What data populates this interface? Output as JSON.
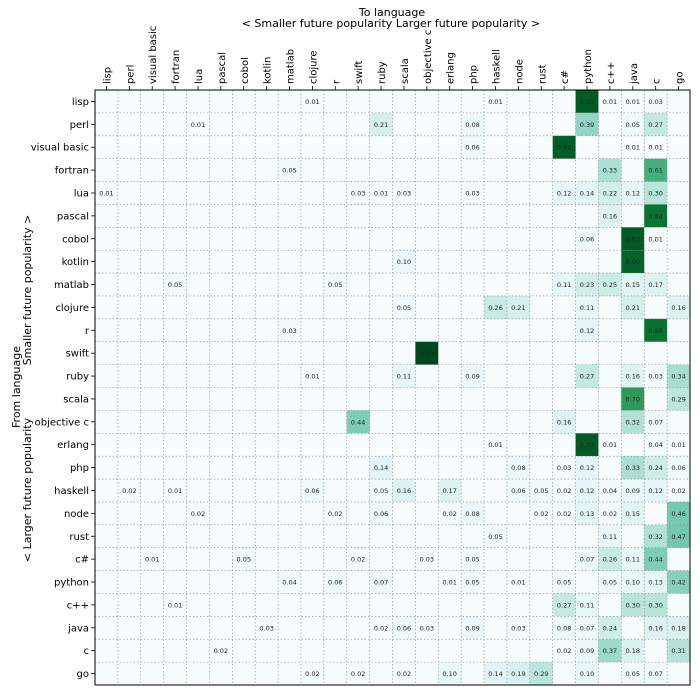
{
  "chart_data": {
    "type": "heatmap",
    "x_axis_label": "To language",
    "x_direction_left": "< Smaller future popularity",
    "x_direction_right": "Larger future popularity >",
    "y_axis_label": "From language",
    "y_direction_top": "Smaller future popularity >",
    "y_direction_bottom": "< Larger future popularity",
    "grid": true,
    "colormap": [
      "#f7fcfd",
      "#e5f5f9",
      "#ccece6",
      "#99d8c9",
      "#66c2a4",
      "#41ae76",
      "#238b45",
      "#006d2c",
      "#00441b"
    ],
    "columns": [
      "lisp",
      "perl",
      "visual basic",
      "fortran",
      "lua",
      "pascal",
      "cobol",
      "kotlin",
      "matlab",
      "clojure",
      "r",
      "swift",
      "ruby",
      "scala",
      "objective c",
      "erlang",
      "php",
      "haskell",
      "node",
      "rust",
      "c#",
      "python",
      "c++",
      "java",
      "c",
      "go"
    ],
    "rows": [
      "lisp",
      "perl",
      "visual basic",
      "fortran",
      "lua",
      "pascal",
      "cobol",
      "kotlin",
      "matlab",
      "clojure",
      "r",
      "swift",
      "ruby",
      "scala",
      "objective c",
      "erlang",
      "php",
      "haskell",
      "node",
      "rust",
      "c#",
      "python",
      "c++",
      "java",
      "c",
      "go"
    ],
    "cells": [
      {
        "row": "lisp",
        "col": "clojure",
        "value": 0.01,
        "label": "0.01"
      },
      {
        "row": "lisp",
        "col": "haskell",
        "value": 0.01,
        "label": "0.01"
      },
      {
        "row": "lisp",
        "col": "python",
        "value": 0.93,
        "label": "0.93"
      },
      {
        "row": "lisp",
        "col": "c++",
        "value": 0.01,
        "label": "0.01"
      },
      {
        "row": "lisp",
        "col": "java",
        "value": 0.01,
        "label": "0.01"
      },
      {
        "row": "lisp",
        "col": "c",
        "value": 0.03,
        "label": "0.03"
      },
      {
        "row": "perl",
        "col": "lua",
        "value": 0.01,
        "label": "0.01"
      },
      {
        "row": "perl",
        "col": "ruby",
        "value": 0.21,
        "label": "0.21"
      },
      {
        "row": "perl",
        "col": "php",
        "value": 0.08,
        "label": "0.08"
      },
      {
        "row": "perl",
        "col": "python",
        "value": 0.39,
        "label": "0.39"
      },
      {
        "row": "perl",
        "col": "java",
        "value": 0.05,
        "label": "0.05"
      },
      {
        "row": "perl",
        "col": "c",
        "value": 0.27,
        "label": "0.27"
      },
      {
        "row": "visual basic",
        "col": "php",
        "value": 0.06,
        "label": "0.06"
      },
      {
        "row": "visual basic",
        "col": "c#",
        "value": 0.92,
        "label": "0.92"
      },
      {
        "row": "visual basic",
        "col": "java",
        "value": 0.01,
        "label": "0.01"
      },
      {
        "row": "visual basic",
        "col": "c",
        "value": 0.01,
        "label": "0.01"
      },
      {
        "row": "fortran",
        "col": "matlab",
        "value": 0.05,
        "label": "0.05"
      },
      {
        "row": "fortran",
        "col": "c++",
        "value": 0.33,
        "label": "0.33"
      },
      {
        "row": "fortran",
        "col": "c",
        "value": 0.61,
        "label": "0.61"
      },
      {
        "row": "lua",
        "col": "lisp",
        "value": 0.01,
        "label": "0.01"
      },
      {
        "row": "lua",
        "col": "swift",
        "value": 0.03,
        "label": "0.03"
      },
      {
        "row": "lua",
        "col": "ruby",
        "value": 0.01,
        "label": "0.01"
      },
      {
        "row": "lua",
        "col": "scala",
        "value": 0.03,
        "label": "0.03"
      },
      {
        "row": "lua",
        "col": "php",
        "value": 0.03,
        "label": "0.03"
      },
      {
        "row": "lua",
        "col": "c#",
        "value": 0.12,
        "label": "0.12"
      },
      {
        "row": "lua",
        "col": "python",
        "value": 0.14,
        "label": "0.14"
      },
      {
        "row": "lua",
        "col": "c++",
        "value": 0.22,
        "label": "0.22"
      },
      {
        "row": "lua",
        "col": "java",
        "value": 0.12,
        "label": "0.12"
      },
      {
        "row": "lua",
        "col": "c",
        "value": 0.3,
        "label": "0.30"
      },
      {
        "row": "pascal",
        "col": "c++",
        "value": 0.16,
        "label": "0.16"
      },
      {
        "row": "pascal",
        "col": "c",
        "value": 0.84,
        "label": "0.84"
      },
      {
        "row": "cobol",
        "col": "python",
        "value": 0.06,
        "label": "0.06"
      },
      {
        "row": "cobol",
        "col": "java",
        "value": 0.93,
        "label": "0.93"
      },
      {
        "row": "cobol",
        "col": "c",
        "value": 0.01,
        "label": "0.01"
      },
      {
        "row": "kotlin",
        "col": "scala",
        "value": 0.1,
        "label": "0.10"
      },
      {
        "row": "kotlin",
        "col": "java",
        "value": 0.9,
        "label": "0.90"
      },
      {
        "row": "matlab",
        "col": "fortran",
        "value": 0.05,
        "label": "0.05"
      },
      {
        "row": "matlab",
        "col": "r",
        "value": 0.05,
        "label": "0.05"
      },
      {
        "row": "matlab",
        "col": "c#",
        "value": 0.11,
        "label": "0.11"
      },
      {
        "row": "matlab",
        "col": "python",
        "value": 0.23,
        "label": "0.23"
      },
      {
        "row": "matlab",
        "col": "c++",
        "value": 0.25,
        "label": "0.25"
      },
      {
        "row": "matlab",
        "col": "java",
        "value": 0.15,
        "label": "0.15"
      },
      {
        "row": "matlab",
        "col": "c",
        "value": 0.17,
        "label": "0.17"
      },
      {
        "row": "clojure",
        "col": "scala",
        "value": 0.05,
        "label": "0.05"
      },
      {
        "row": "clojure",
        "col": "haskell",
        "value": 0.26,
        "label": "0.26"
      },
      {
        "row": "clojure",
        "col": "node",
        "value": 0.21,
        "label": "0.21"
      },
      {
        "row": "clojure",
        "col": "python",
        "value": 0.11,
        "label": "0.11"
      },
      {
        "row": "clojure",
        "col": "java",
        "value": 0.21,
        "label": "0.21"
      },
      {
        "row": "clojure",
        "col": "go",
        "value": 0.16,
        "label": "0.16"
      },
      {
        "row": "r",
        "col": "matlab",
        "value": 0.03,
        "label": "0.03"
      },
      {
        "row": "r",
        "col": "python",
        "value": 0.12,
        "label": "0.12"
      },
      {
        "row": "r",
        "col": "c",
        "value": 0.85,
        "label": "0.85"
      },
      {
        "row": "swift",
        "col": "objective c",
        "value": 0.99,
        "label": "0.99"
      },
      {
        "row": "ruby",
        "col": "clojure",
        "value": 0.01,
        "label": "0.01"
      },
      {
        "row": "ruby",
        "col": "scala",
        "value": 0.11,
        "label": "0.11"
      },
      {
        "row": "ruby",
        "col": "php",
        "value": 0.09,
        "label": "0.09"
      },
      {
        "row": "ruby",
        "col": "python",
        "value": 0.27,
        "label": "0.27"
      },
      {
        "row": "ruby",
        "col": "java",
        "value": 0.16,
        "label": "0.16"
      },
      {
        "row": "ruby",
        "col": "c",
        "value": 0.03,
        "label": "0.03"
      },
      {
        "row": "ruby",
        "col": "go",
        "value": 0.34,
        "label": "0.34"
      },
      {
        "row": "scala",
        "col": "java",
        "value": 0.7,
        "label": "0.70"
      },
      {
        "row": "scala",
        "col": "go",
        "value": 0.29,
        "label": "0.29"
      },
      {
        "row": "objective c",
        "col": "swift",
        "value": 0.44,
        "label": "0.44"
      },
      {
        "row": "objective c",
        "col": "c#",
        "value": 0.16,
        "label": "0.16"
      },
      {
        "row": "objective c",
        "col": "java",
        "value": 0.32,
        "label": "0.32"
      },
      {
        "row": "objective c",
        "col": "c",
        "value": 0.07,
        "label": "0.07"
      },
      {
        "row": "erlang",
        "col": "haskell",
        "value": 0.01,
        "label": "0.01"
      },
      {
        "row": "erlang",
        "col": "python",
        "value": 0.93,
        "label": "0.93"
      },
      {
        "row": "erlang",
        "col": "c++",
        "value": 0.01,
        "label": "0.01"
      },
      {
        "row": "erlang",
        "col": "c",
        "value": 0.04,
        "label": "0.04"
      },
      {
        "row": "erlang",
        "col": "go",
        "value": 0.01,
        "label": "0.01"
      },
      {
        "row": "php",
        "col": "ruby",
        "value": 0.14,
        "label": "0.14"
      },
      {
        "row": "php",
        "col": "node",
        "value": 0.08,
        "label": "0.08"
      },
      {
        "row": "php",
        "col": "c#",
        "value": 0.03,
        "label": "0.03"
      },
      {
        "row": "php",
        "col": "python",
        "value": 0.12,
        "label": "0.12"
      },
      {
        "row": "php",
        "col": "java",
        "value": 0.33,
        "label": "0.33"
      },
      {
        "row": "php",
        "col": "c",
        "value": 0.24,
        "label": "0.24"
      },
      {
        "row": "php",
        "col": "go",
        "value": 0.06,
        "label": "0.06"
      },
      {
        "row": "haskell",
        "col": "perl",
        "value": 0.02,
        "label": "0.02"
      },
      {
        "row": "haskell",
        "col": "fortran",
        "value": 0.01,
        "label": "0.01"
      },
      {
        "row": "haskell",
        "col": "clojure",
        "value": 0.06,
        "label": "0.06"
      },
      {
        "row": "haskell",
        "col": "ruby",
        "value": 0.05,
        "label": "0.05"
      },
      {
        "row": "haskell",
        "col": "scala",
        "value": 0.16,
        "label": "0.16"
      },
      {
        "row": "haskell",
        "col": "erlang",
        "value": 0.17,
        "label": "0.17"
      },
      {
        "row": "haskell",
        "col": "node",
        "value": 0.06,
        "label": "0.06"
      },
      {
        "row": "haskell",
        "col": "rust",
        "value": 0.05,
        "label": "0.05"
      },
      {
        "row": "haskell",
        "col": "c#",
        "value": 0.02,
        "label": "0.02"
      },
      {
        "row": "haskell",
        "col": "python",
        "value": 0.12,
        "label": "0.12"
      },
      {
        "row": "haskell",
        "col": "c++",
        "value": 0.04,
        "label": "0.04"
      },
      {
        "row": "haskell",
        "col": "java",
        "value": 0.09,
        "label": "0.09"
      },
      {
        "row": "haskell",
        "col": "c",
        "value": 0.12,
        "label": "0.12"
      },
      {
        "row": "haskell",
        "col": "go",
        "value": 0.02,
        "label": "0.02"
      },
      {
        "row": "node",
        "col": "lua",
        "value": 0.02,
        "label": "0.02"
      },
      {
        "row": "node",
        "col": "r",
        "value": 0.02,
        "label": "0.02"
      },
      {
        "row": "node",
        "col": "ruby",
        "value": 0.06,
        "label": "0.06"
      },
      {
        "row": "node",
        "col": "erlang",
        "value": 0.02,
        "label": "0.02"
      },
      {
        "row": "node",
        "col": "php",
        "value": 0.08,
        "label": "0.08"
      },
      {
        "row": "node",
        "col": "rust",
        "value": 0.02,
        "label": "0.02"
      },
      {
        "row": "node",
        "col": "c#",
        "value": 0.02,
        "label": "0.02"
      },
      {
        "row": "node",
        "col": "python",
        "value": 0.13,
        "label": "0.13"
      },
      {
        "row": "node",
        "col": "c++",
        "value": 0.02,
        "label": "0.02"
      },
      {
        "row": "node",
        "col": "java",
        "value": 0.15,
        "label": "0.15"
      },
      {
        "row": "node",
        "col": "go",
        "value": 0.46,
        "label": "0.46"
      },
      {
        "row": "rust",
        "col": "haskell",
        "value": 0.05,
        "label": "0.05"
      },
      {
        "row": "rust",
        "col": "c++",
        "value": 0.11,
        "label": "0.11"
      },
      {
        "row": "rust",
        "col": "c",
        "value": 0.32,
        "label": "0.32"
      },
      {
        "row": "rust",
        "col": "go",
        "value": 0.47,
        "label": "0.47"
      },
      {
        "row": "c#",
        "col": "visual basic",
        "value": 0.01,
        "label": "0.01"
      },
      {
        "row": "c#",
        "col": "cobol",
        "value": 0.05,
        "label": "0.05"
      },
      {
        "row": "c#",
        "col": "swift",
        "value": 0.02,
        "label": "0.02"
      },
      {
        "row": "c#",
        "col": "objective c",
        "value": 0.03,
        "label": "0.03"
      },
      {
        "row": "c#",
        "col": "php",
        "value": 0.05,
        "label": "0.05"
      },
      {
        "row": "c#",
        "col": "python",
        "value": 0.07,
        "label": "0.07"
      },
      {
        "row": "c#",
        "col": "c++",
        "value": 0.26,
        "label": "0.26"
      },
      {
        "row": "c#",
        "col": "java",
        "value": 0.11,
        "label": "0.11"
      },
      {
        "row": "c#",
        "col": "c",
        "value": 0.44,
        "label": "0.44"
      },
      {
        "row": "python",
        "col": "matlab",
        "value": 0.04,
        "label": "0.04"
      },
      {
        "row": "python",
        "col": "r",
        "value": 0.06,
        "label": "0.06"
      },
      {
        "row": "python",
        "col": "ruby",
        "value": 0.07,
        "label": "0.07"
      },
      {
        "row": "python",
        "col": "erlang",
        "value": 0.01,
        "label": "0.01"
      },
      {
        "row": "python",
        "col": "php",
        "value": 0.05,
        "label": "0.05"
      },
      {
        "row": "python",
        "col": "node",
        "value": 0.01,
        "label": "0.01"
      },
      {
        "row": "python",
        "col": "c#",
        "value": 0.05,
        "label": "0.05"
      },
      {
        "row": "python",
        "col": "c++",
        "value": 0.05,
        "label": "0.05"
      },
      {
        "row": "python",
        "col": "java",
        "value": 0.1,
        "label": "0.10"
      },
      {
        "row": "python",
        "col": "c",
        "value": 0.13,
        "label": "0.13"
      },
      {
        "row": "python",
        "col": "go",
        "value": 0.42,
        "label": "0.42"
      },
      {
        "row": "c++",
        "col": "fortran",
        "value": 0.01,
        "label": "0.01"
      },
      {
        "row": "c++",
        "col": "c#",
        "value": 0.27,
        "label": "0.27"
      },
      {
        "row": "c++",
        "col": "python",
        "value": 0.11,
        "label": "0.11"
      },
      {
        "row": "c++",
        "col": "java",
        "value": 0.3,
        "label": "0.30"
      },
      {
        "row": "c++",
        "col": "c",
        "value": 0.3,
        "label": "0.30"
      },
      {
        "row": "java",
        "col": "kotlin",
        "value": 0.03,
        "label": "0.03"
      },
      {
        "row": "java",
        "col": "ruby",
        "value": 0.02,
        "label": "0.02"
      },
      {
        "row": "java",
        "col": "scala",
        "value": 0.06,
        "label": "0.06"
      },
      {
        "row": "java",
        "col": "objective c",
        "value": 0.03,
        "label": "0.03"
      },
      {
        "row": "java",
        "col": "php",
        "value": 0.09,
        "label": "0.09"
      },
      {
        "row": "java",
        "col": "node",
        "value": 0.03,
        "label": "0.03"
      },
      {
        "row": "java",
        "col": "c#",
        "value": 0.08,
        "label": "0.08"
      },
      {
        "row": "java",
        "col": "python",
        "value": 0.07,
        "label": "0.07"
      },
      {
        "row": "java",
        "col": "c++",
        "value": 0.24,
        "label": "0.24"
      },
      {
        "row": "java",
        "col": "c",
        "value": 0.16,
        "label": "0.16"
      },
      {
        "row": "java",
        "col": "go",
        "value": 0.18,
        "label": "0.18"
      },
      {
        "row": "c",
        "col": "pascal",
        "value": 0.02,
        "label": "0.02"
      },
      {
        "row": "c",
        "col": "c#",
        "value": 0.02,
        "label": "0.02"
      },
      {
        "row": "c",
        "col": "python",
        "value": 0.09,
        "label": "0.09"
      },
      {
        "row": "c",
        "col": "c++",
        "value": 0.37,
        "label": "0.37"
      },
      {
        "row": "c",
        "col": "java",
        "value": 0.18,
        "label": "0.18"
      },
      {
        "row": "c",
        "col": "go",
        "value": 0.31,
        "label": "0.31"
      },
      {
        "row": "go",
        "col": "clojure",
        "value": 0.02,
        "label": "0.02"
      },
      {
        "row": "go",
        "col": "swift",
        "value": 0.02,
        "label": "0.02"
      },
      {
        "row": "go",
        "col": "scala",
        "value": 0.02,
        "label": "0.02"
      },
      {
        "row": "go",
        "col": "erlang",
        "value": 0.1,
        "label": "0.10"
      },
      {
        "row": "go",
        "col": "haskell",
        "value": 0.14,
        "label": "0.14"
      },
      {
        "row": "go",
        "col": "node",
        "value": 0.19,
        "label": "0.19"
      },
      {
        "row": "go",
        "col": "rust",
        "value": 0.29,
        "label": "0.29"
      },
      {
        "row": "go",
        "col": "python",
        "value": 0.1,
        "label": "0.10"
      },
      {
        "row": "go",
        "col": "java",
        "value": 0.05,
        "label": "0.05"
      },
      {
        "row": "go",
        "col": "c",
        "value": 0.07,
        "label": "0.07"
      }
    ]
  }
}
